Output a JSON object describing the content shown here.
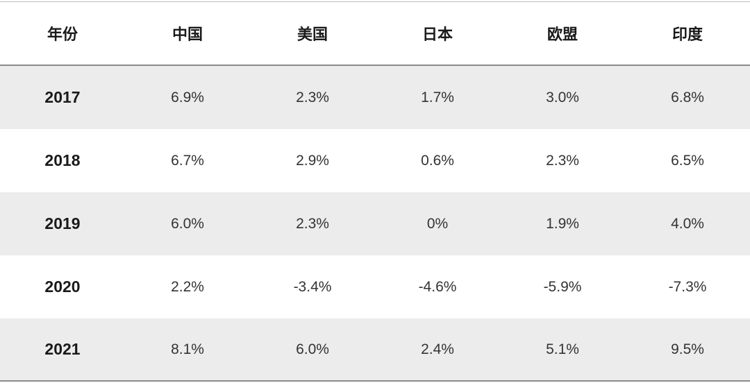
{
  "chart_data": {
    "type": "table",
    "columns": [
      "年份",
      "中国",
      "美国",
      "日本",
      "欧盟",
      "印度"
    ],
    "rows": [
      {
        "year": "2017",
        "values": [
          "6.9%",
          "2.3%",
          "1.7%",
          "3.0%",
          "6.8%"
        ]
      },
      {
        "year": "2018",
        "values": [
          "6.7%",
          "2.9%",
          "0.6%",
          "2.3%",
          "6.5%"
        ]
      },
      {
        "year": "2019",
        "values": [
          "6.0%",
          "2.3%",
          "0%",
          "1.9%",
          "4.0%"
        ]
      },
      {
        "year": "2020",
        "values": [
          "2.2%",
          "-3.4%",
          "-4.6%",
          "-5.9%",
          "-7.3%"
        ]
      },
      {
        "year": "2021",
        "values": [
          "8.1%",
          "6.0%",
          "2.4%",
          "5.1%",
          "9.5%"
        ]
      }
    ],
    "row_shading": "alternating"
  },
  "colors": {
    "shaded_row": "#ececec",
    "rule": "#8a8a8a",
    "text": "#1a1a1a"
  }
}
